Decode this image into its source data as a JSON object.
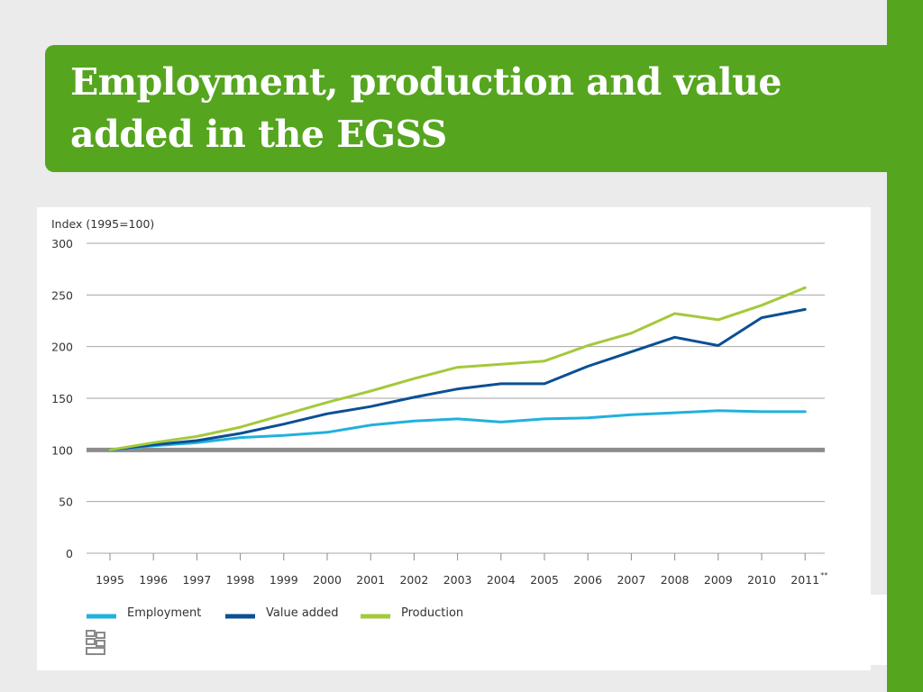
{
  "slide": {
    "title": "Employment, production and value added in the EGSS",
    "accent_color": "#55a51f",
    "logo_icon": "cbs-logo-icon"
  },
  "chart_data": {
    "type": "line",
    "ylabel": "Index (1995=100)",
    "ylim": [
      0,
      300
    ],
    "yticks": [
      0,
      50,
      100,
      150,
      200,
      250,
      300
    ],
    "x": [
      "1995",
      "1996",
      "1997",
      "1998",
      "1999",
      "2000",
      "2001",
      "2002",
      "2003",
      "2004",
      "2005",
      "2006",
      "2007",
      "2008",
      "2009",
      "2010",
      "2011"
    ],
    "x_footnote": "**",
    "grid": true,
    "reference_line": 100,
    "legend_position": "bottom-left",
    "series": [
      {
        "name": "Employment",
        "color": "#21b1dd",
        "values": [
          100,
          104,
          107,
          112,
          114,
          117,
          124,
          128,
          130,
          127,
          130,
          131,
          134,
          136,
          138,
          137,
          137
        ]
      },
      {
        "name": "Value added",
        "color": "#0b4f94",
        "values": [
          100,
          105,
          109,
          116,
          125,
          135,
          142,
          151,
          159,
          164,
          164,
          181,
          195,
          209,
          201,
          228,
          236
        ]
      },
      {
        "name": "Production",
        "color": "#a4c93c",
        "values": [
          100,
          107,
          113,
          122,
          134,
          146,
          157,
          169,
          180,
          183,
          186,
          201,
          213,
          232,
          226,
          240,
          257
        ]
      }
    ]
  }
}
